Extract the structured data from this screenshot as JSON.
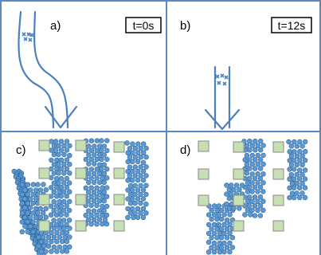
{
  "panels": [
    {
      "id": "a",
      "label": "a)",
      "time": "t=0s"
    },
    {
      "id": "b",
      "label": "b)",
      "time": "t=12s"
    },
    {
      "id": "c",
      "label": "c)"
    },
    {
      "id": "d",
      "label": "d)"
    }
  ],
  "colors": {
    "border": "#5b87c5",
    "flow": "#4a7fc0",
    "particle_fill": "#5b9bd5",
    "particle_stroke": "#2f5f93",
    "pillar_fill": "#c6e0b4",
    "pillar_stroke": "#8a8a8a"
  }
}
